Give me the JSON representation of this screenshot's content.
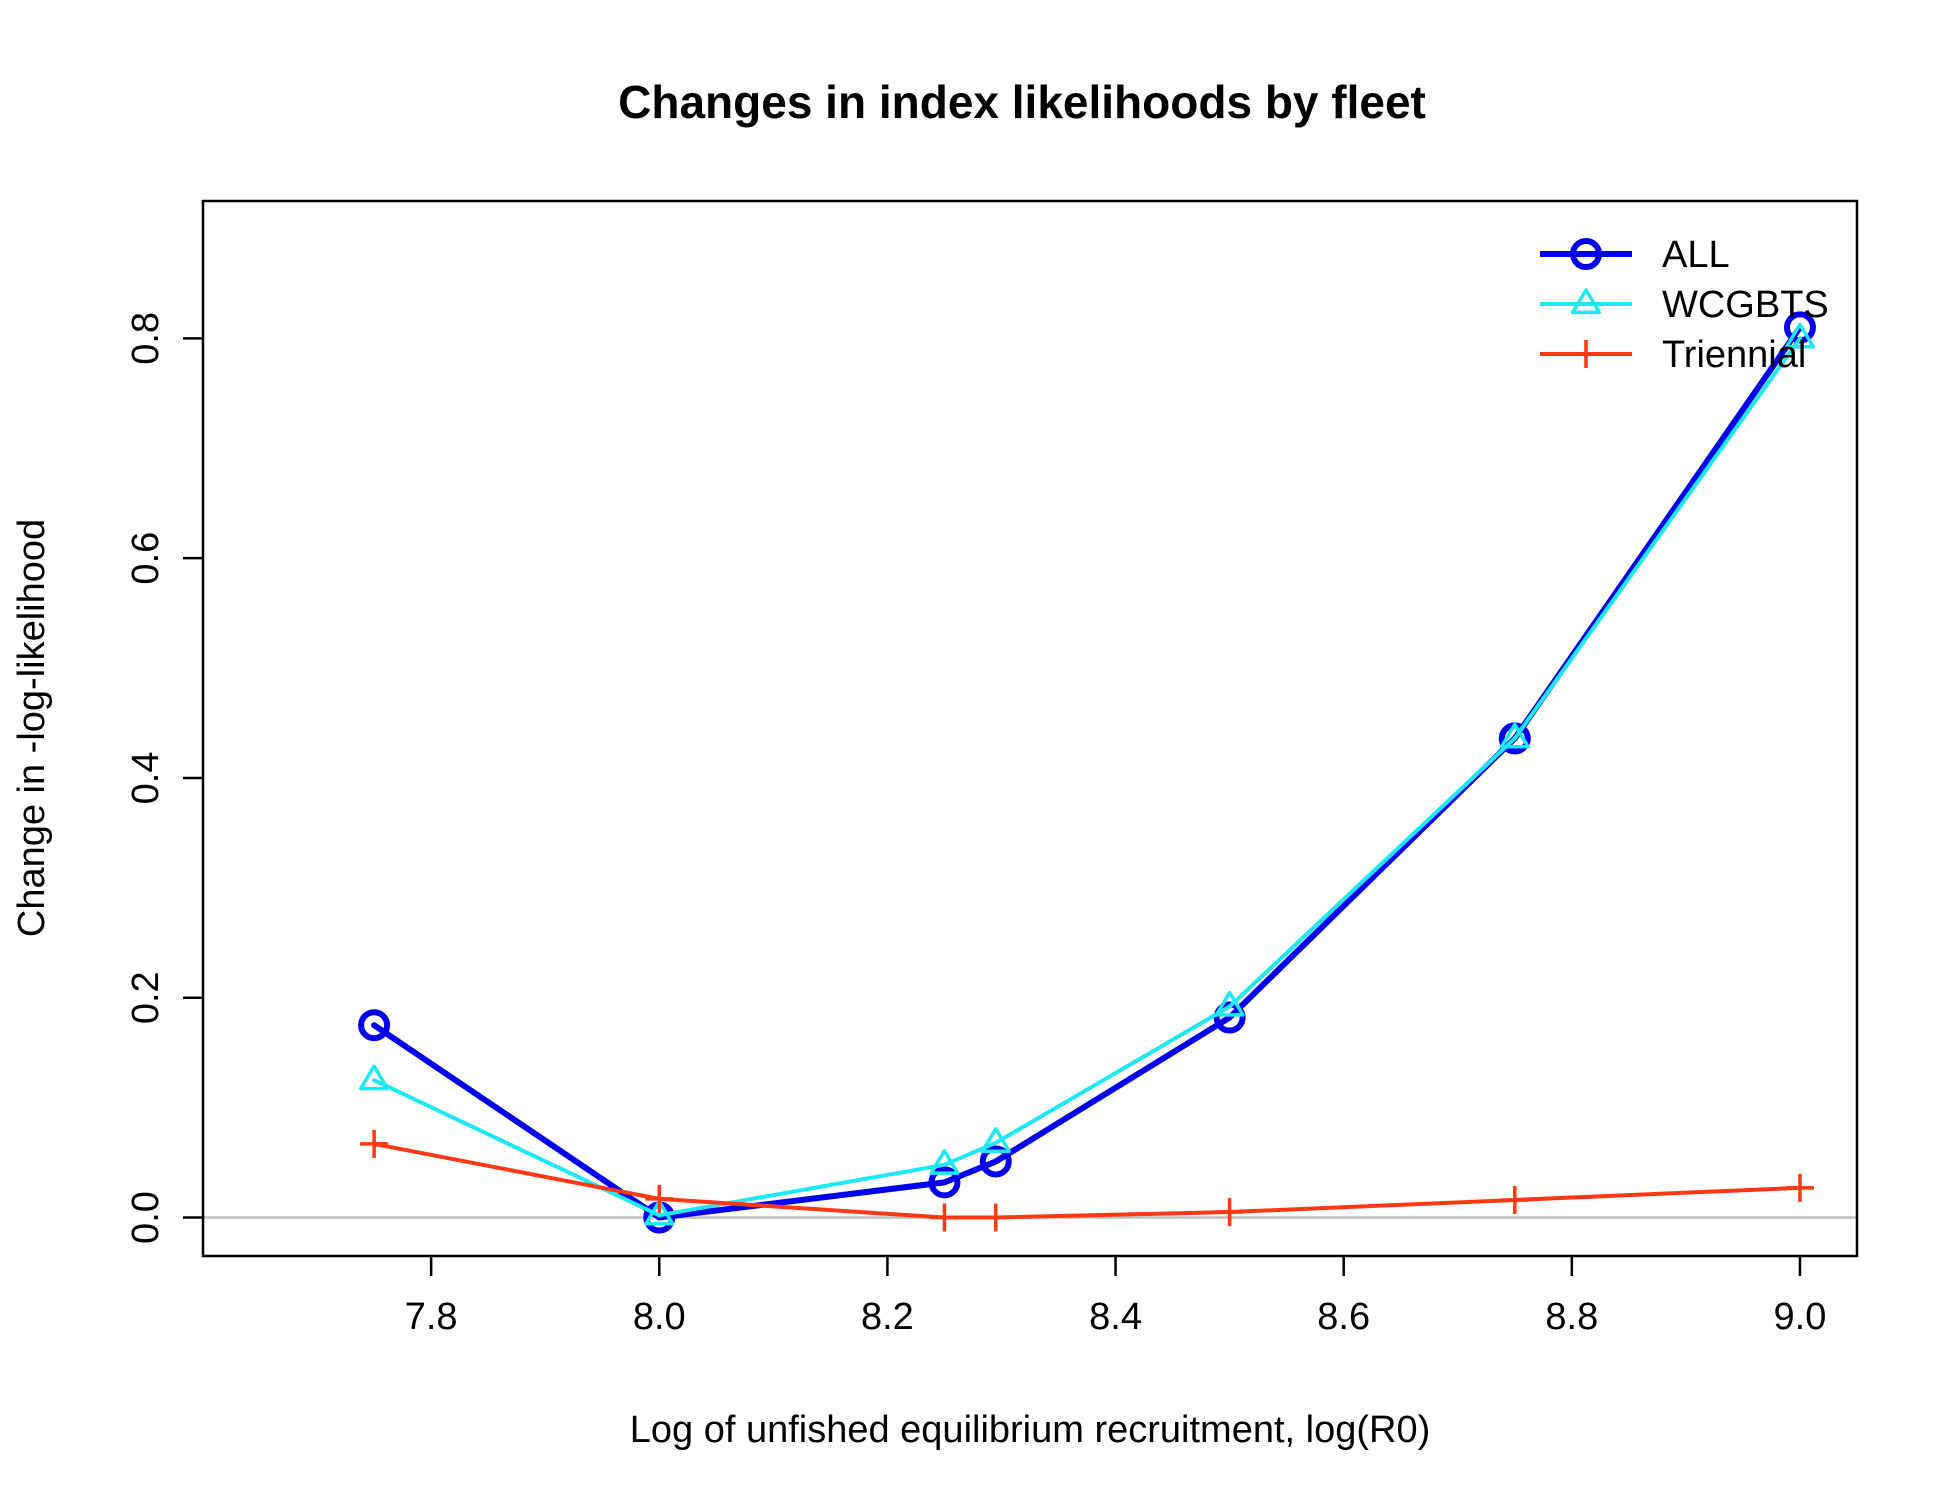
{
  "chart_data": {
    "type": "line",
    "title": "Changes in index likelihoods by fleet",
    "xlabel": "Log of unfished equilibrium recruitment, log(R0)",
    "ylabel": "Change in -log-likelihood",
    "xlim": [
      7.6,
      9.05
    ],
    "ylim": [
      -0.035,
      0.925
    ],
    "xticks": [
      7.8,
      8.0,
      8.2,
      8.4,
      8.6,
      8.8,
      9.0
    ],
    "xtick_labels": [
      "7.8",
      "8.0",
      "8.2",
      "8.4",
      "8.6",
      "8.8",
      "9.0"
    ],
    "yticks": [
      0.0,
      0.2,
      0.4,
      0.6,
      0.8
    ],
    "ytick_labels": [
      "0.0",
      "0.2",
      "0.4",
      "0.6",
      "0.8"
    ],
    "x": [
      7.75,
      8.0,
      8.25,
      8.295,
      8.5,
      8.75,
      9.0
    ],
    "reference_line_y": 0,
    "grid": false,
    "legend_position": "top-right",
    "series": [
      {
        "name": "ALL",
        "color": "#0000EE",
        "marker": "circle",
        "values": [
          0.175,
          0.0,
          0.032,
          0.051,
          0.182,
          0.436,
          0.81
        ]
      },
      {
        "name": "WCGBTS",
        "color": "#1FE8F5",
        "marker": "triangle",
        "values": [
          0.125,
          0.002,
          0.048,
          0.068,
          0.192,
          0.436,
          0.8
        ]
      },
      {
        "name": "Triennial",
        "color": "#FF3814",
        "marker": "plus",
        "values": [
          0.067,
          0.017,
          0.0,
          0.0,
          0.005,
          0.016,
          0.027
        ]
      }
    ]
  }
}
